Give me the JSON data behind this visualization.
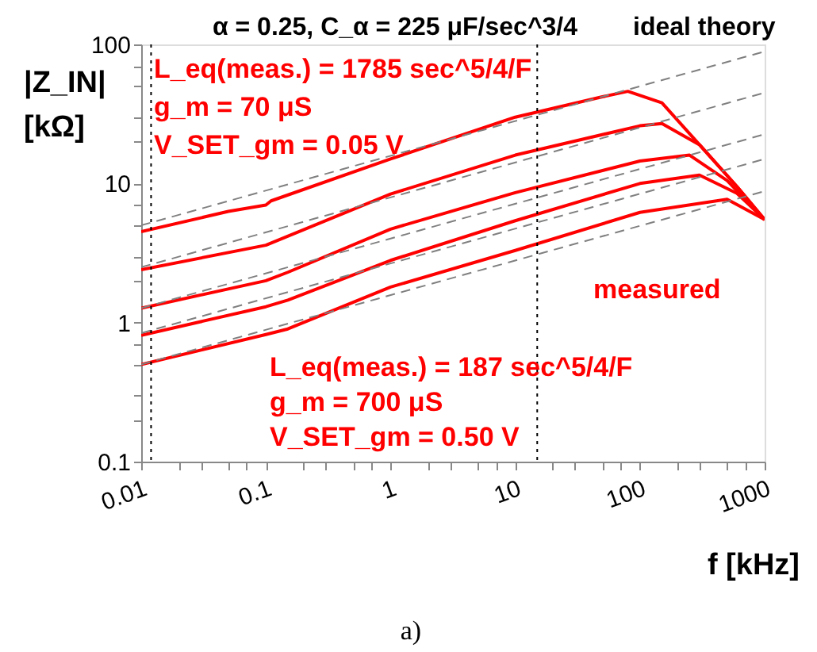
{
  "chart_data": {
    "type": "line",
    "title": "α = 0.25, C_α = 225 μF/sec^3/4",
    "xlabel": "f [kHz]",
    "ylabel": "|Z_IN| [kΩ]",
    "log": "xy",
    "grid": false,
    "xlim": [
      0.01,
      1000
    ],
    "ylim": [
      0.1,
      100
    ],
    "xticks": [
      0.01,
      {
        "value": 0.02,
        "label": null
      },
      {
        "value": 0.03,
        "label": null
      },
      {
        "value": 0.05,
        "label": null
      },
      {
        "value": 0.07,
        "label": null
      },
      0.1,
      {
        "value": 0.2,
        "label": null
      },
      {
        "value": 0.3,
        "label": null
      },
      {
        "value": 0.5,
        "label": null
      },
      {
        "value": 0.7,
        "label": null
      },
      1,
      {
        "value": 2,
        "label": null
      },
      {
        "value": 3,
        "label": null
      },
      {
        "value": 5,
        "label": null
      },
      {
        "value": 7,
        "label": null
      },
      10,
      {
        "value": 20,
        "label": null
      },
      {
        "value": 30,
        "label": null
      },
      {
        "value": 50,
        "label": null
      },
      {
        "value": 70,
        "label": null
      },
      100,
      {
        "value": 200,
        "label": null
      },
      {
        "value": 300,
        "label": null
      },
      {
        "value": 500,
        "label": null
      },
      {
        "value": 700,
        "label": null
      },
      1000
    ],
    "yticks": [
      0.1,
      {
        "value": 0.2,
        "label": null
      },
      {
        "value": 0.3,
        "label": null
      },
      {
        "value": 0.5,
        "label": null
      },
      {
        "value": 0.7,
        "label": null
      },
      1,
      {
        "value": 2,
        "label": null
      },
      {
        "value": 3,
        "label": null
      },
      {
        "value": 5,
        "label": null
      },
      {
        "value": 7,
        "label": null
      },
      10,
      {
        "value": 20,
        "label": null
      },
      {
        "value": 30,
        "label": null
      },
      {
        "value": 50,
        "label": null
      },
      {
        "value": 70,
        "label": null
      },
      100
    ],
    "series": [
      {
        "color": "#ff0000",
        "line_style": "solid",
        "x": [
          0.01,
          0.05,
          0.1,
          0.11,
          1,
          10,
          50,
          80,
          150,
          300,
          600,
          1000
        ],
        "values": [
          4.5,
          6.3,
          7.0,
          7.5,
          15,
          30,
          42,
          46,
          38,
          19,
          9.5,
          5.5
        ]
      },
      {
        "color": "#ff0000",
        "line_style": "solid",
        "x": [
          0.01,
          0.1,
          1,
          10,
          100,
          150,
          300,
          600,
          1000
        ],
        "values": [
          2.4,
          3.6,
          8.4,
          16,
          26,
          27,
          19,
          9.5,
          5.5
        ]
      },
      {
        "color": "#ff0000",
        "line_style": "solid",
        "x": [
          0.01,
          0.1,
          0.15,
          1,
          10,
          100,
          250,
          500,
          1000
        ],
        "values": [
          1.27,
          2.0,
          2.3,
          4.7,
          8.6,
          14.5,
          16,
          10.5,
          5.5
        ]
      },
      {
        "color": "#ff0000",
        "line_style": "solid",
        "x": [
          0.01,
          0.1,
          0.15,
          1,
          10,
          100,
          300,
          600,
          1000
        ],
        "values": [
          0.81,
          1.3,
          1.45,
          2.8,
          5.4,
          10,
          11.5,
          8.5,
          5.5
        ]
      },
      {
        "color": "#ff0000",
        "line_style": "solid",
        "x": [
          0.01,
          0.1,
          0.15,
          1,
          10,
          100,
          500,
          1000
        ],
        "values": [
          0.5,
          0.82,
          0.9,
          1.8,
          3.3,
          6.2,
          7.7,
          5.5
        ]
      },
      {
        "color": "#808080",
        "line_style": "dashed",
        "x": [
          0.01,
          1000
        ],
        "values": [
          5,
          89
        ]
      },
      {
        "color": "#808080",
        "line_style": "dashed",
        "x": [
          0.01,
          1000
        ],
        "values": [
          2.5,
          45
        ]
      },
      {
        "color": "#808080",
        "line_style": "dashed",
        "x": [
          0.01,
          1000
        ],
        "values": [
          1.27,
          22.6
        ]
      },
      {
        "color": "#808080",
        "line_style": "dashed",
        "x": [
          0.01,
          1000
        ],
        "values": [
          0.84,
          15
        ]
      },
      {
        "color": "#808080",
        "line_style": "dashed",
        "x": [
          0.01,
          1000
        ],
        "values": [
          0.5,
          8.8
        ]
      }
    ],
    "ref_lines": [
      {
        "axis": "x",
        "value": 0.012,
        "color": "#000000",
        "line_style": "dotted"
      },
      {
        "axis": "x",
        "value": 15,
        "color": "#000000",
        "line_style": "dotted"
      }
    ],
    "annotations": [
      "ideal theory",
      "L_eq(meas.) = 1785 sec^5/4/F",
      "g_m = 70 μS",
      "V_SET_gm = 0.05 V",
      "measured",
      "L_eq(meas.) = 187 sec^5/4/F",
      "g_m = 700 μS",
      "V_SET_gm = 0.50 V",
      "a)"
    ]
  }
}
